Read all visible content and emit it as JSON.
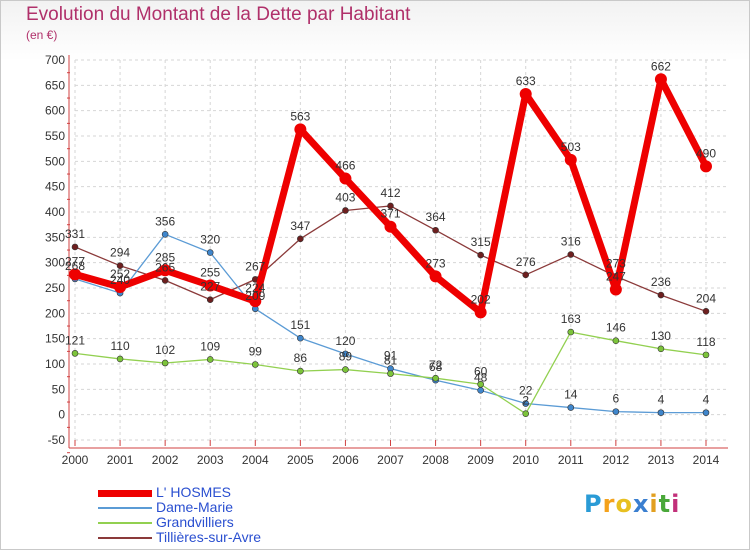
{
  "header": {
    "title": "Evolution du Montant de la Dette par Habitant",
    "subtitle": "(en €)"
  },
  "logo": {
    "letters": [
      "P",
      "r",
      "o",
      "x",
      "i",
      "t",
      "i"
    ],
    "colors": [
      "#2a9bd6",
      "#f4a21c",
      "#e8c020",
      "#3a7fd0",
      "#e2a020",
      "#4aa83a",
      "#c2307a"
    ]
  },
  "chart_data": {
    "type": "line",
    "x": [
      "2000",
      "2001",
      "2002",
      "2003",
      "2004",
      "2005",
      "2006",
      "2007",
      "2008",
      "2009",
      "2010",
      "2011",
      "2012",
      "2013",
      "2014"
    ],
    "ylim": [
      -50,
      700
    ],
    "yticks": [
      -50,
      0,
      50,
      100,
      150,
      200,
      250,
      300,
      350,
      400,
      450,
      500,
      550,
      600,
      650,
      700
    ],
    "grid": true,
    "legend_position": "bottom-left",
    "series": [
      {
        "name": "L' HOSMES",
        "color": "#ee0000",
        "width": 7,
        "marker_color": "#ee0000",
        "values": [
          277,
          252,
          285,
          255,
          224,
          563,
          466,
          371,
          273,
          202,
          633,
          503,
          247,
          662,
          490
        ],
        "labels": [
          "277",
          "252",
          "285",
          "255",
          "224",
          "563",
          "466",
          "371",
          "273",
          "202",
          "633",
          "503",
          "247",
          "662",
          "490"
        ]
      },
      {
        "name": "Dame-Marie",
        "color": "#5b9bd5",
        "width": 1.3,
        "marker_color": "#3f86cc",
        "values": [
          268,
          240,
          356,
          320,
          209,
          151,
          120,
          91,
          68,
          48,
          22,
          14,
          6,
          4,
          4
        ],
        "labels": [
          "268",
          "240",
          "356",
          "320",
          "209",
          "151",
          "120",
          "91",
          "68",
          "48",
          "22",
          "14",
          "6",
          "4",
          "4"
        ]
      },
      {
        "name": "Grandvilliers",
        "color": "#92d050",
        "width": 1.3,
        "marker_color": "#7cc43a",
        "values": [
          121,
          110,
          102,
          109,
          99,
          86,
          89,
          81,
          72,
          60,
          2,
          163,
          146,
          130,
          118
        ],
        "labels": [
          "121",
          "110",
          "102",
          "109",
          "99",
          "86",
          "89",
          "81",
          "72",
          "60",
          "2",
          "163",
          "146",
          "130",
          "118"
        ]
      },
      {
        "name": "Tillières-sur-Avre",
        "color": "#8b3a3a",
        "width": 1.3,
        "marker_color": "#6e1f1f",
        "values": [
          331,
          294,
          265,
          227,
          267,
          347,
          403,
          412,
          364,
          315,
          276,
          316,
          273,
          236,
          204
        ],
        "labels": [
          "331",
          "294",
          "265",
          "227",
          "267",
          "347",
          "403",
          "412",
          "364",
          "315",
          "276",
          "316",
          "273",
          "236",
          "204"
        ]
      }
    ]
  },
  "legend": {
    "items": [
      {
        "label": "L' HOSMES",
        "color": "#ee0000",
        "text_color": "#2a4fd0",
        "thickness": 7
      },
      {
        "label": "Dame-Marie",
        "color": "#5b9bd5",
        "text_color": "#2a4fd0",
        "thickness": 2
      },
      {
        "label": "Grandvilliers",
        "color": "#92d050",
        "text_color": "#2a4fd0",
        "thickness": 2
      },
      {
        "label": "Tillières-sur-Avre",
        "color": "#8b3a3a",
        "text_color": "#2a4fd0",
        "thickness": 2
      }
    ]
  }
}
